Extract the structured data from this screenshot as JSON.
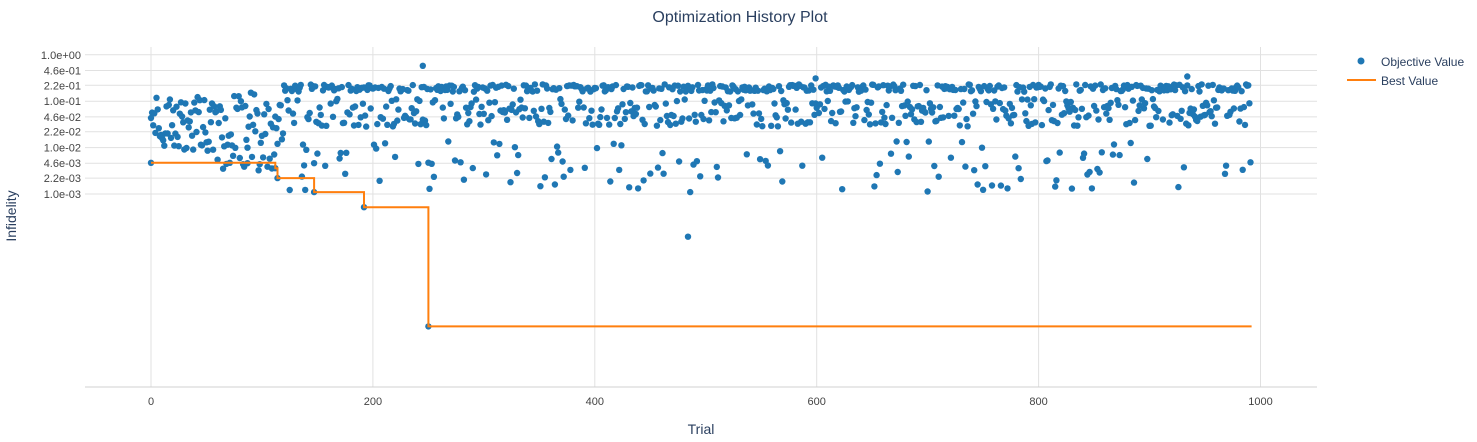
{
  "chart_data": {
    "type": "scatter",
    "title": "Optimization History Plot",
    "xlabel": "Trial",
    "ylabel": "Infidelity",
    "xlim": [
      -60,
      1050
    ],
    "x_ticks": [
      0,
      200,
      400,
      600,
      800,
      1000
    ],
    "y_scale": "log",
    "y_ticks": [
      "1.0e+00",
      "4.6e-01",
      "2.2e-01",
      "1.0e-01",
      "4.6e-02",
      "2.2e-02",
      "1.0e-02",
      "4.6e-03",
      "2.2e-03",
      "1.0e-03"
    ],
    "grid": true,
    "legend_position": "top-right",
    "colors": {
      "objective": "#1f77b4",
      "best": "#ff7f0e",
      "grid": "#e1e1e1",
      "axis_line": "#d0d0d0"
    },
    "series": [
      {
        "name": "Objective Value",
        "kind": "markers",
        "notable_points": [
          {
            "x": 0,
            "y": 0.0047
          },
          {
            "x": 87,
            "y": 0.0046
          },
          {
            "x": 112,
            "y": 0.0036
          },
          {
            "x": 114,
            "y": 0.0022
          },
          {
            "x": 147,
            "y": 0.0011
          },
          {
            "x": 192,
            "y": 0.00052
          },
          {
            "x": 245,
            "y": 0.58
          },
          {
            "x": 250,
            "y": 1.4e-06
          },
          {
            "x": 484,
            "y": 0.00012
          },
          {
            "x": 486,
            "y": 0.0011
          },
          {
            "x": 599,
            "y": 0.31
          },
          {
            "x": 934,
            "y": 0.34
          }
        ]
      },
      {
        "name": "Best Value",
        "kind": "line",
        "steps": [
          {
            "x": 0,
            "y": 0.0047
          },
          {
            "x": 112,
            "y": 0.0036
          },
          {
            "x": 114,
            "y": 0.0022
          },
          {
            "x": 147,
            "y": 0.0011
          },
          {
            "x": 192,
            "y": 0.00052
          },
          {
            "x": 250,
            "y": 1.4e-06
          },
          {
            "x": 992,
            "y": 1.4e-06
          }
        ]
      }
    ]
  }
}
